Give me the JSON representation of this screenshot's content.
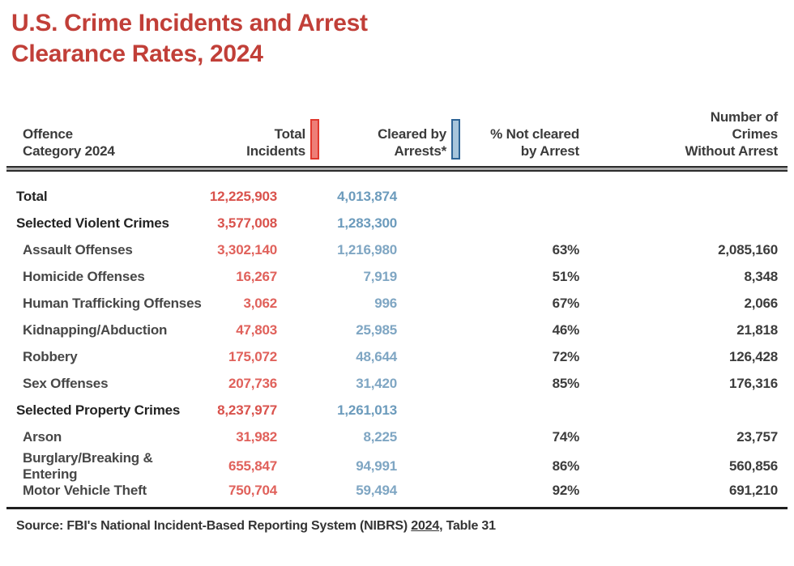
{
  "title": {
    "lines": [
      "U.S. Crime Incidents and Arrest",
      "Clearance Rates, 2024"
    ]
  },
  "colors": {
    "title_red": "#C13F38",
    "data_red": "#E0615B",
    "data_blue": "#7FA6C3",
    "marker_red_fill": "#EE7E77",
    "marker_red_border": "#E0392F",
    "marker_blue_fill": "#A7C5DB",
    "marker_blue_border": "#2E6496",
    "text_dark": "#242424",
    "rule_gray": "#ABABAB"
  },
  "chart_data": {
    "type": "table",
    "title": "U.S. Crime Incidents and Arrest Clearance Rates, 2024",
    "columns": [
      {
        "lines": [
          "Offence",
          "Category 2024"
        ],
        "marker": null
      },
      {
        "lines": [
          "Total",
          "Incidents"
        ],
        "marker": "red"
      },
      {
        "lines": [
          "Cleared by",
          "Arrests*"
        ],
        "marker": "blue"
      },
      {
        "lines": [
          "% Not cleared",
          "by Arrest"
        ],
        "marker": null
      },
      {
        "lines": [
          "Number of",
          "Crimes",
          "Without Arrest"
        ],
        "marker": null
      }
    ],
    "rows": [
      {
        "name": "Total",
        "style": "section",
        "total_incidents": "12,225,903",
        "cleared_by_arrest": "4,013,874",
        "pct_not_cleared": "",
        "crimes_without_arrest": ""
      },
      {
        "name": "Selected Violent Crimes",
        "style": "section",
        "total_incidents": "3,577,008",
        "cleared_by_arrest": "1,283,300",
        "pct_not_cleared": "",
        "crimes_without_arrest": ""
      },
      {
        "name": "Assault Offenses",
        "style": "sub",
        "total_incidents": "3,302,140",
        "cleared_by_arrest": "1,216,980",
        "pct_not_cleared": "63%",
        "crimes_without_arrest": "2,085,160"
      },
      {
        "name": "Homicide Offenses",
        "style": "sub",
        "total_incidents": "16,267",
        "cleared_by_arrest": "7,919",
        "pct_not_cleared": "51%",
        "crimes_without_arrest": "8,348"
      },
      {
        "name": "Human Trafficking Offenses",
        "style": "sub",
        "total_incidents": "3,062",
        "cleared_by_arrest": "996",
        "pct_not_cleared": "67%",
        "crimes_without_arrest": "2,066"
      },
      {
        "name": "Kidnapping/Abduction",
        "style": "sub",
        "total_incidents": "47,803",
        "cleared_by_arrest": "25,985",
        "pct_not_cleared": "46%",
        "crimes_without_arrest": "21,818"
      },
      {
        "name": "Robbery",
        "style": "sub",
        "total_incidents": "175,072",
        "cleared_by_arrest": "48,644",
        "pct_not_cleared": "72%",
        "crimes_without_arrest": "126,428"
      },
      {
        "name": "Sex Offenses",
        "style": "sub",
        "total_incidents": "207,736",
        "cleared_by_arrest": "31,420",
        "pct_not_cleared": "85%",
        "crimes_without_arrest": "176,316"
      },
      {
        "name": "Selected Property Crimes",
        "style": "section",
        "total_incidents": "8,237,977",
        "cleared_by_arrest": "1,261,013",
        "pct_not_cleared": "",
        "crimes_without_arrest": ""
      },
      {
        "name": "Arson",
        "style": "sub",
        "total_incidents": "31,982",
        "cleared_by_arrest": "8,225",
        "pct_not_cleared": "74%",
        "crimes_without_arrest": "23,757"
      },
      {
        "name": "Burglary/Breaking & Entering",
        "style": "sub",
        "total_incidents": "655,847",
        "cleared_by_arrest": "94,991",
        "pct_not_cleared": "86%",
        "crimes_without_arrest": "560,856"
      },
      {
        "name": "Motor Vehicle Theft",
        "style": "sub",
        "total_incidents": "750,704",
        "cleared_by_arrest": "59,494",
        "pct_not_cleared": "92%",
        "crimes_without_arrest": "691,210"
      }
    ],
    "source": "Source: FBI's National Incident-Based Reporting System (NIBRS) 2024, Table 31"
  },
  "source_note": {
    "prefix": "Source: FBI's National Incident-Based Reporting System (NIBRS) ",
    "year": "2024",
    "suffix": ", Table 31"
  }
}
